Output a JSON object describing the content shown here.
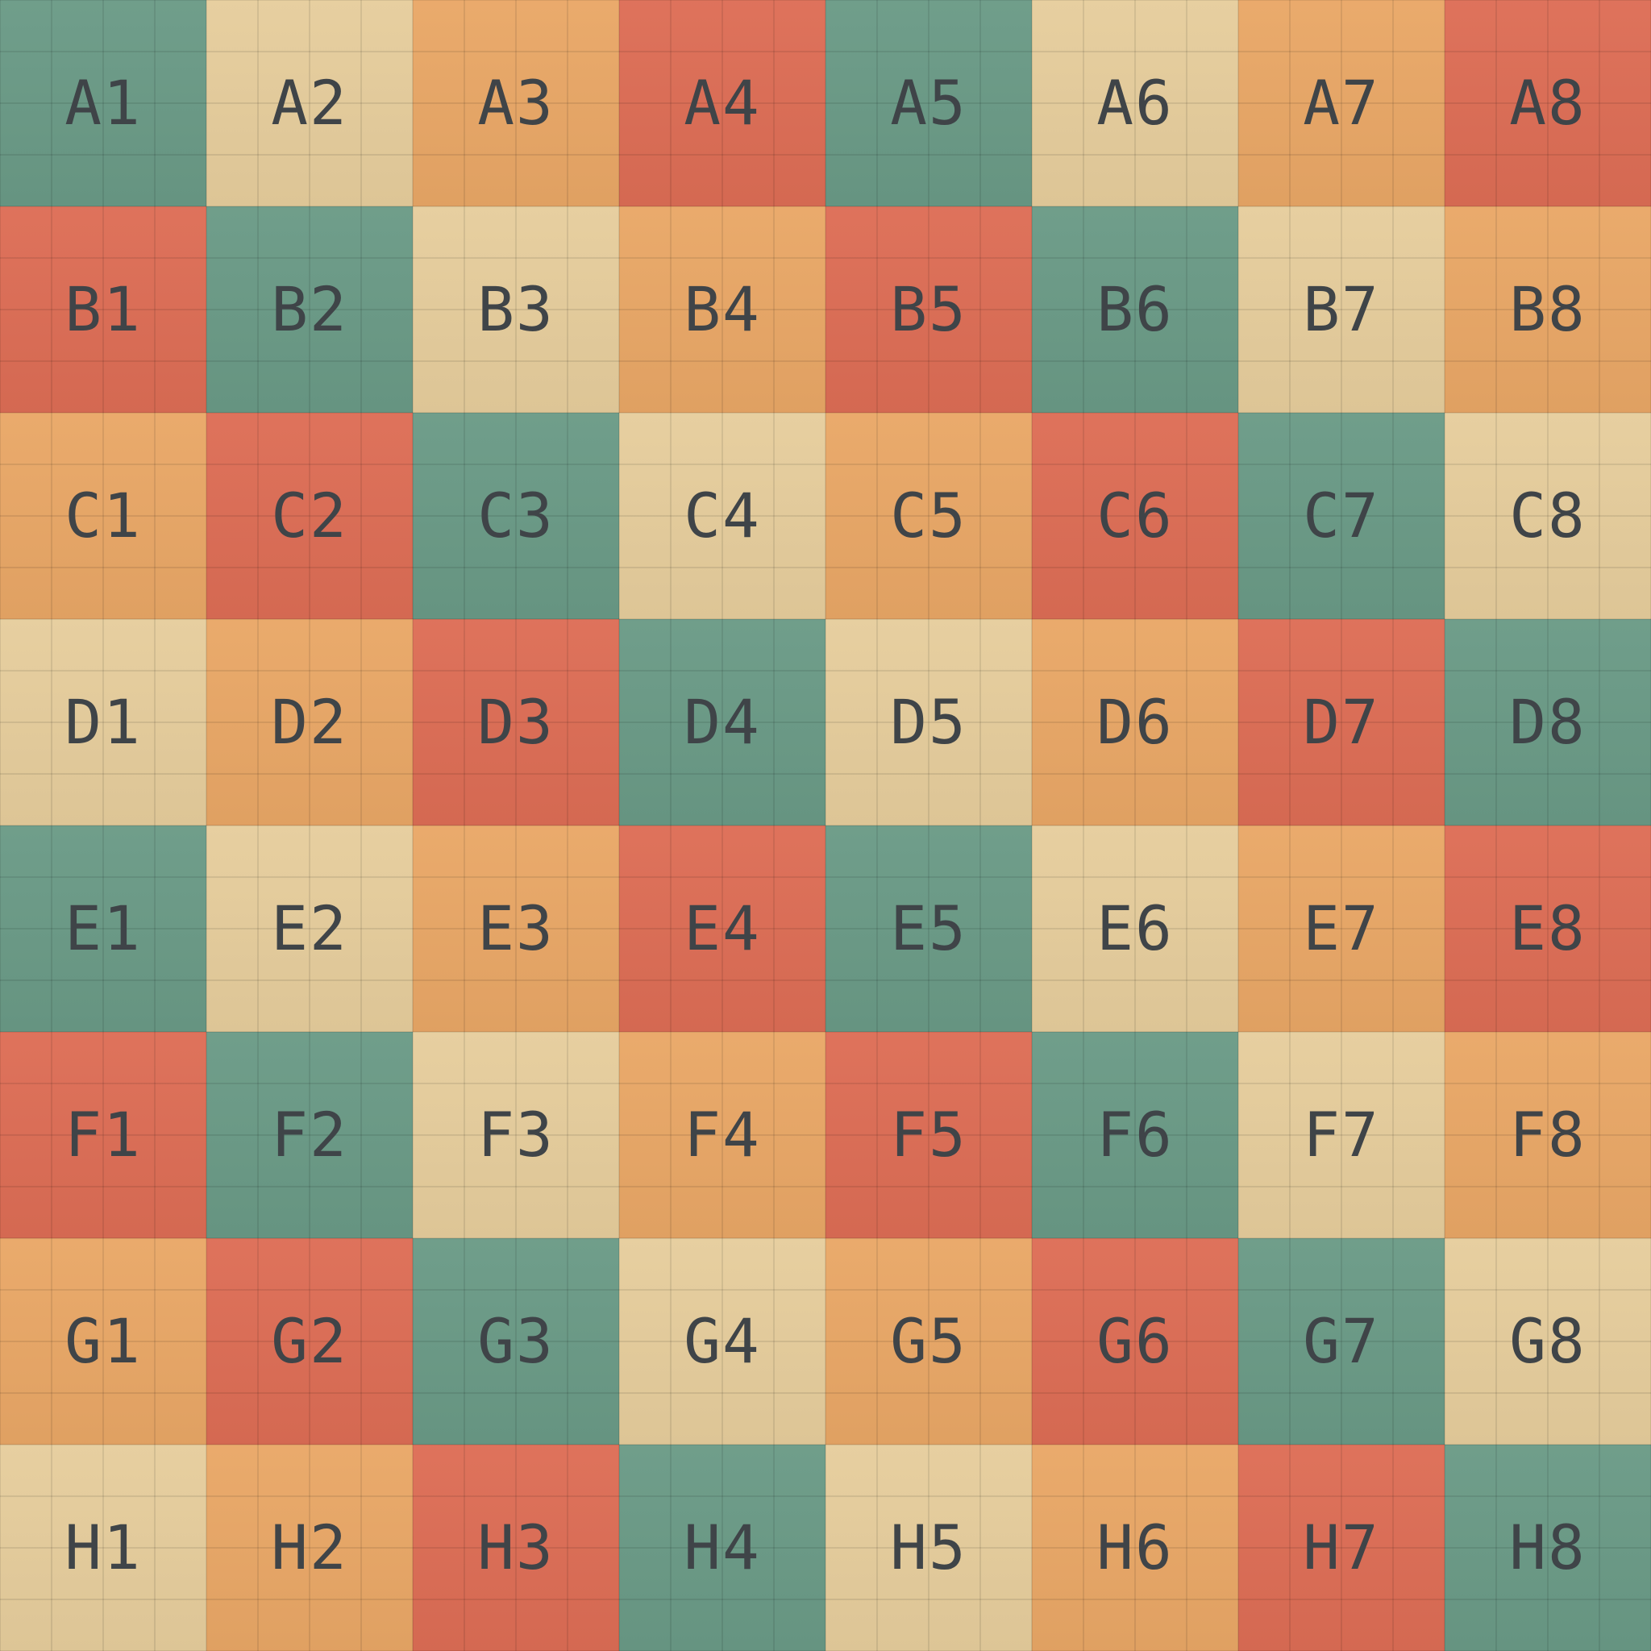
{
  "palette": {
    "teal": "#6a9a86",
    "sand": "#e6cd9c",
    "orange": "#e9a766",
    "red": "#dd6d55",
    "label": "#3f4448"
  },
  "color_cycle": [
    "teal",
    "sand",
    "orange",
    "red"
  ],
  "rows": [
    "A",
    "B",
    "C",
    "D",
    "E",
    "F",
    "G",
    "H"
  ],
  "board": [
    [
      "A1",
      "A2",
      "A3",
      "A4",
      "A5",
      "A6",
      "A7",
      "A8"
    ],
    [
      "B1",
      "B2",
      "B3",
      "B4",
      "B5",
      "B6",
      "B7",
      "B8"
    ],
    [
      "C1",
      "C2",
      "C3",
      "C4",
      "C5",
      "C6",
      "C7",
      "C8"
    ],
    [
      "D1",
      "D2",
      "D3",
      "D4",
      "D5",
      "D6",
      "D7",
      "D8"
    ],
    [
      "E1",
      "E2",
      "E3",
      "E4",
      "E5",
      "E6",
      "E7",
      "E8"
    ],
    [
      "F1",
      "F2",
      "F3",
      "F4",
      "F5",
      "F6",
      "F7",
      "F8"
    ],
    [
      "G1",
      "G2",
      "G3",
      "G4",
      "G5",
      "G6",
      "G7",
      "G8"
    ],
    [
      "H1",
      "H2",
      "H3",
      "H4",
      "H5",
      "H6",
      "H7",
      "H8"
    ]
  ]
}
